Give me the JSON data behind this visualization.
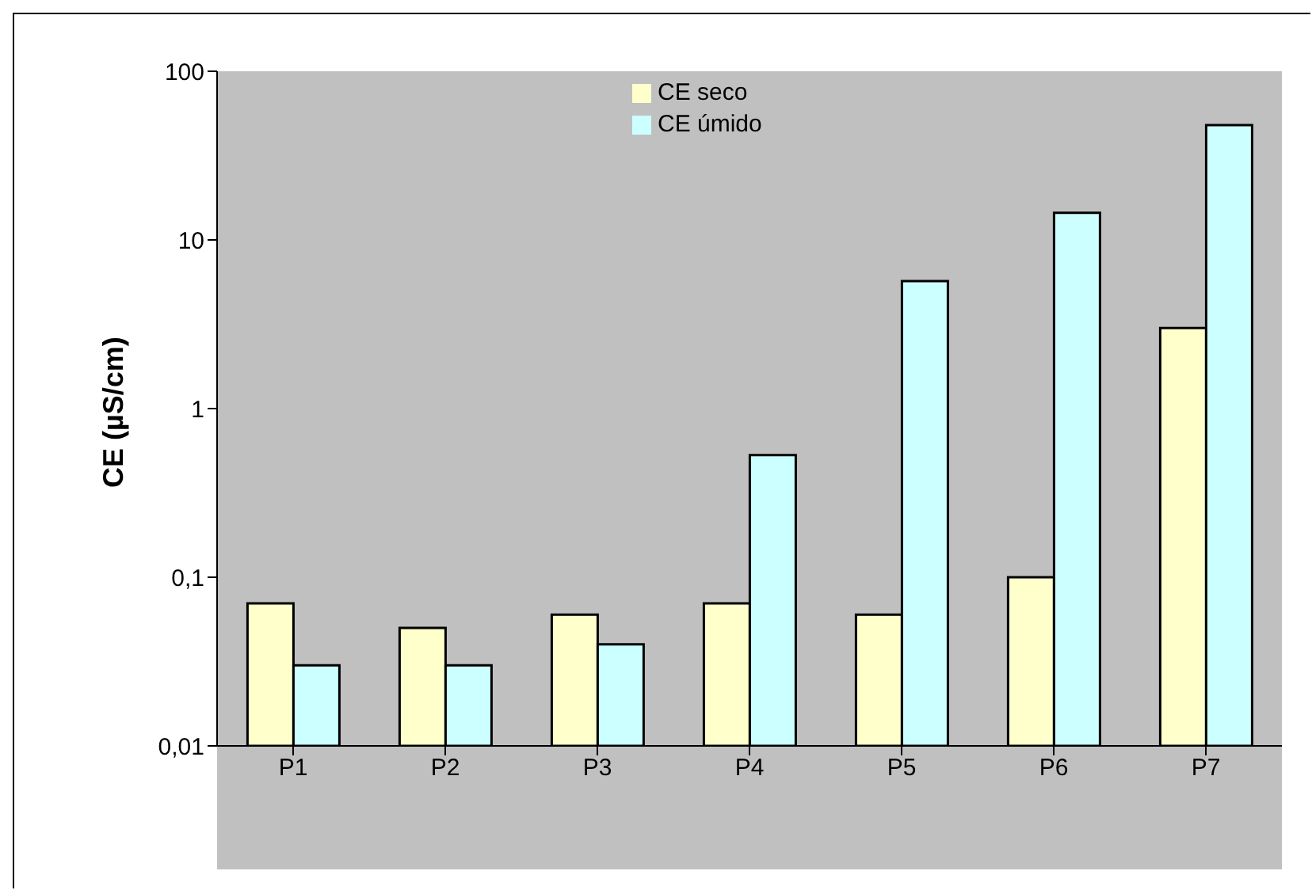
{
  "chart_data": {
    "type": "bar",
    "ylabel": "CE (µS/cm)",
    "categories": [
      "P1",
      "P2",
      "P3",
      "P4",
      "P5",
      "P6",
      "P7"
    ],
    "series": [
      {
        "name": "CE seco",
        "color": "#ffffcc",
        "values": [
          0.07,
          0.05,
          0.06,
          0.07,
          0.06,
          0.1,
          3
        ]
      },
      {
        "name": "CE úmido",
        "color": "#ccffff",
        "values": [
          0.03,
          0.03,
          0.04,
          0.53,
          5.7,
          14.5,
          48
        ]
      }
    ],
    "log": true,
    "ylim": [
      0.01,
      100
    ],
    "yticks": [
      {
        "value": 0.01,
        "label": "0,01"
      },
      {
        "value": 0.1,
        "label": "0,1"
      },
      {
        "value": 1,
        "label": "1"
      },
      10,
      100
    ],
    "legend": "top",
    "grid": false
  }
}
